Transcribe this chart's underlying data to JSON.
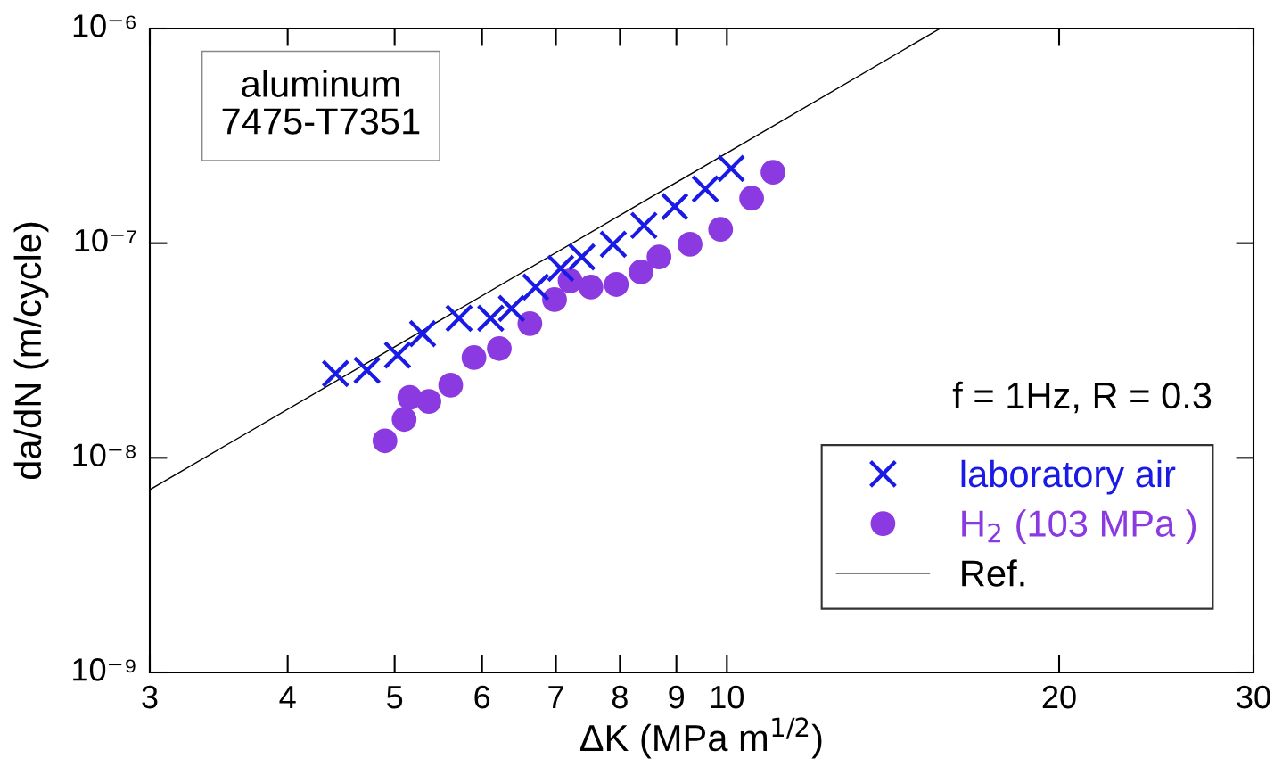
{
  "chart_data": {
    "type": "scatter",
    "xlabel": "ΔK (MPa m$^{1/2}$)",
    "ylabel": "da/dN (m/cycle)",
    "log": "xy",
    "xlim": [
      3,
      30
    ],
    "xticks": [
      3,
      4,
      5,
      6,
      7,
      8,
      9,
      10,
      20,
      30
    ],
    "ylim": [
      1e-09,
      1e-06
    ],
    "yticks": [
      {
        "value": 1e-09,
        "label": "10⁻⁹"
      },
      {
        "value": 1e-08,
        "label": "10⁻⁸"
      },
      {
        "value": 1e-07,
        "label": "10⁻⁷"
      },
      {
        "value": 1e-06,
        "label": "10⁻⁶"
      }
    ],
    "grid": false,
    "legend": "bottom right",
    "annotations": [
      "aluminum\n7475-T7351",
      "f = 1Hz, R = 0.3"
    ],
    "series": [
      {
        "name": "laboratory air",
        "marker": "cross",
        "color": "#1a1ae6",
        "x": [
          4.42,
          4.72,
          5.03,
          5.3,
          5.72,
          6.11,
          6.38,
          6.71,
          7.07,
          7.39,
          7.89,
          8.41,
          8.97,
          9.56,
          10.09
        ],
        "values": [
          2.47e-08,
          2.56e-08,
          3.01e-08,
          3.79e-08,
          4.47e-08,
          4.47e-08,
          4.96e-08,
          6.24e-08,
          7.63e-08,
          8.63e-08,
          9.88e-08,
          1.21e-07,
          1.48e-07,
          1.79e-07,
          2.23e-07
        ]
      },
      {
        "name": "H$_{2}$ (103 MPa )",
        "marker": "circle",
        "color": "#8a3ae0",
        "x": [
          4.9,
          5.1,
          5.16,
          5.37,
          5.62,
          5.9,
          6.22,
          6.63,
          6.98,
          7.21,
          7.53,
          7.94,
          8.36,
          8.68,
          9.26,
          9.87,
          10.53,
          11.01
        ],
        "values": [
          1.2e-08,
          1.51e-08,
          1.91e-08,
          1.83e-08,
          2.18e-08,
          2.93e-08,
          3.23e-08,
          4.22e-08,
          5.46e-08,
          6.68e-08,
          6.24e-08,
          6.42e-08,
          7.34e-08,
          8.63e-08,
          9.88e-08,
          1.16e-07,
          1.62e-07,
          2.14e-07
        ]
      },
      {
        "name": "Ref.",
        "type": "line",
        "marker": "none",
        "line_style": "solid",
        "color": "#000000",
        "x": [
          3,
          15.6
        ],
        "values": [
          7.1e-09,
          1e-06
        ]
      }
    ]
  }
}
